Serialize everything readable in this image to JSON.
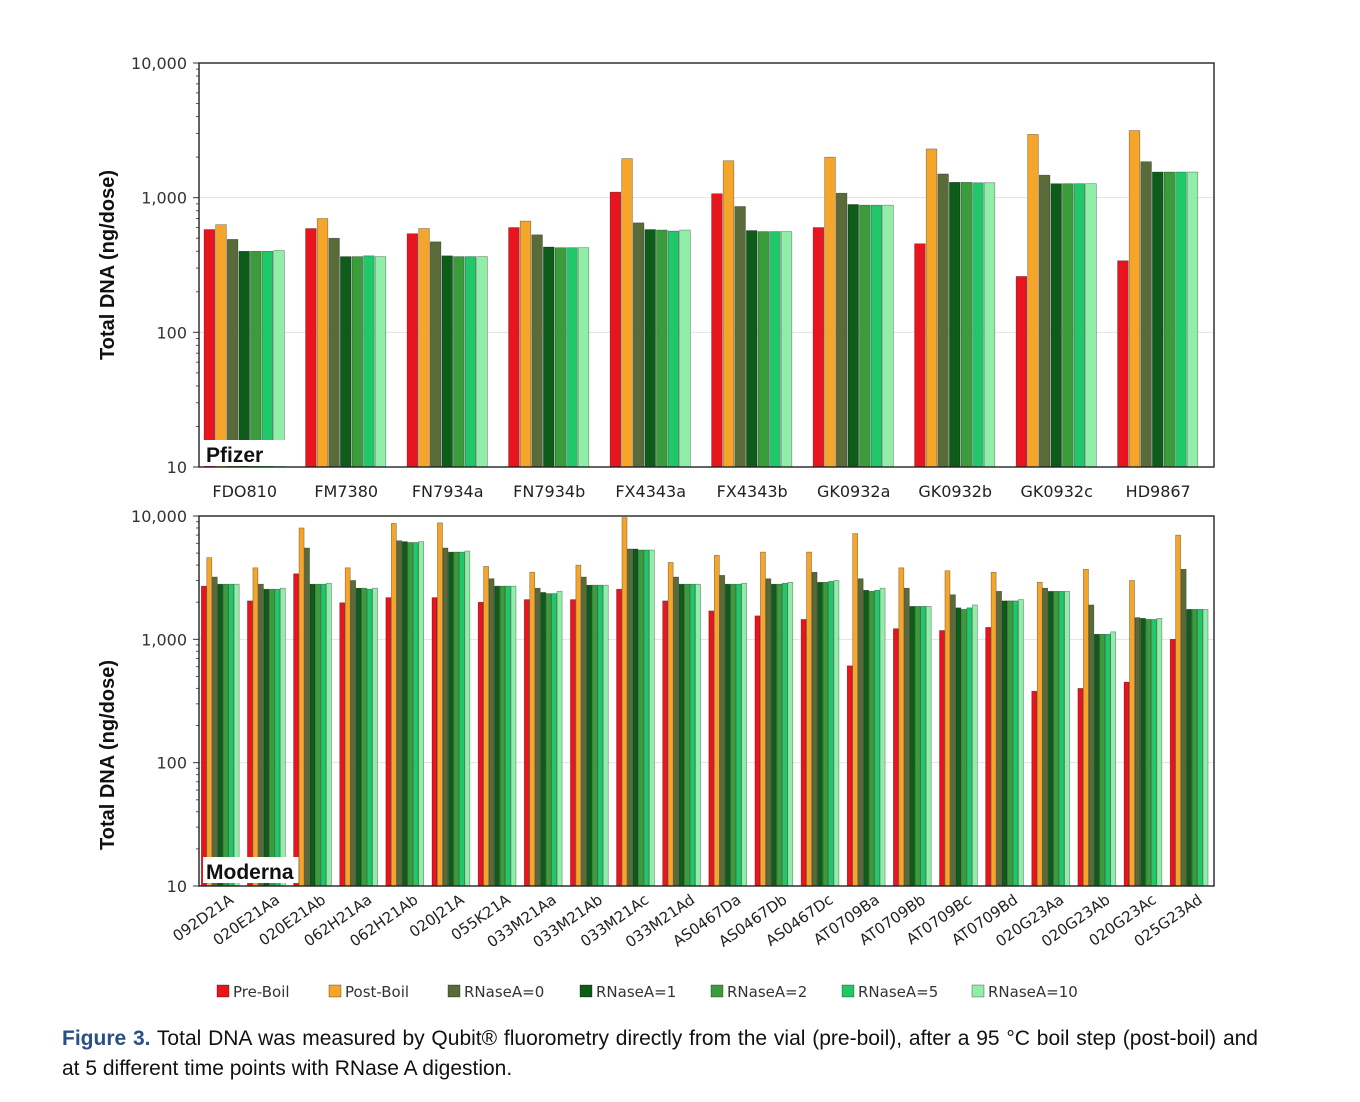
{
  "chart_data": [
    {
      "type": "bar",
      "brand_label": "Pfizer",
      "ylabel": "Total DNA (ng/dose)",
      "yscale": "log",
      "ylim": [
        10,
        10000
      ],
      "yticks": [
        10,
        100,
        1000,
        10000
      ],
      "ytick_labels": [
        "10",
        "100",
        "1,000",
        "10,000"
      ],
      "grid": true,
      "categories": [
        "FDO810",
        "FM7380",
        "FN7934a",
        "FN7934b",
        "FX4343a",
        "FX4343b",
        "GK0932a",
        "GK0932b",
        "GK0932c",
        "HD9867"
      ],
      "series": [
        {
          "name": "Pre-Boil",
          "values": [
            580,
            590,
            540,
            600,
            1100,
            1070,
            600,
            455,
            260,
            340
          ]
        },
        {
          "name": "Post-Boil",
          "values": [
            630,
            700,
            590,
            670,
            1950,
            1880,
            2000,
            2300,
            2950,
            3150
          ]
        },
        {
          "name": "RNaseA=0",
          "values": [
            490,
            500,
            470,
            530,
            650,
            860,
            1080,
            1500,
            1470,
            1850
          ]
        },
        {
          "name": "RNaseA=1",
          "values": [
            400,
            365,
            370,
            430,
            580,
            570,
            890,
            1300,
            1270,
            1550
          ]
        },
        {
          "name": "RNaseA=2",
          "values": [
            400,
            365,
            365,
            425,
            575,
            560,
            880,
            1300,
            1270,
            1550
          ]
        },
        {
          "name": "RNaseA=5",
          "values": [
            400,
            370,
            365,
            425,
            565,
            560,
            880,
            1290,
            1270,
            1550
          ]
        },
        {
          "name": "RNaseA=10",
          "values": [
            405,
            365,
            365,
            425,
            575,
            560,
            880,
            1290,
            1270,
            1550
          ]
        }
      ]
    },
    {
      "type": "bar",
      "brand_label": "Moderna",
      "ylabel": "Total DNA (ng/dose)",
      "yscale": "log",
      "ylim": [
        10,
        10000
      ],
      "yticks": [
        10,
        100,
        1000,
        10000
      ],
      "ytick_labels": [
        "10",
        "100",
        "1,000",
        "10,000"
      ],
      "grid": true,
      "categories": [
        "092D21A",
        "020E21Aa",
        "020E21Ab",
        "062H21Aa",
        "062H21Ab",
        "020J21A",
        "055K21A",
        "033M21Aa",
        "033M21Ab",
        "033M21Ac",
        "033M21Ad",
        "AS0467Da",
        "AS0467Db",
        "AS0467Dc",
        "AT0709Ba",
        "AT0709Bb",
        "AT0709Bc",
        "AT0709Bd",
        "020G23Aa",
        "020G23Ab",
        "020G23Ac",
        "025G23Ad"
      ],
      "series": [
        {
          "name": "Pre-Boil",
          "values": [
            2700,
            2050,
            3400,
            1980,
            2180,
            2180,
            2000,
            2100,
            2100,
            2550,
            2050,
            1700,
            1550,
            1450,
            610,
            1220,
            1180,
            1250,
            380,
            400,
            450,
            1000
          ]
        },
        {
          "name": "Post-Boil",
          "values": [
            4600,
            3800,
            8000,
            3800,
            8700,
            8800,
            3900,
            3500,
            4000,
            9700,
            4200,
            4800,
            5100,
            5100,
            7200,
            3800,
            3600,
            3500,
            2900,
            3700,
            3000,
            7000
          ]
        },
        {
          "name": "RNaseA=0",
          "values": [
            3200,
            2800,
            5500,
            3000,
            6300,
            5500,
            3100,
            2600,
            3200,
            5400,
            3200,
            3300,
            3100,
            3500,
            3100,
            2600,
            2300,
            2450,
            2600,
            1900,
            1500,
            3700
          ]
        },
        {
          "name": "RNaseA=1",
          "values": [
            2800,
            2550,
            2800,
            2600,
            6200,
            5100,
            2700,
            2400,
            2750,
            5400,
            2800,
            2800,
            2800,
            2900,
            2500,
            1850,
            1800,
            2050,
            2450,
            1100,
            1480,
            1750
          ]
        },
        {
          "name": "RNaseA=2",
          "values": [
            2800,
            2550,
            2800,
            2600,
            6100,
            5100,
            2700,
            2350,
            2750,
            5300,
            2800,
            2800,
            2800,
            2900,
            2450,
            1850,
            1750,
            2050,
            2450,
            1100,
            1450,
            1750
          ]
        },
        {
          "name": "RNaseA=5",
          "values": [
            2800,
            2550,
            2800,
            2550,
            6100,
            5100,
            2700,
            2350,
            2750,
            5300,
            2800,
            2800,
            2850,
            2950,
            2500,
            1850,
            1800,
            2050,
            2450,
            1100,
            1450,
            1750
          ]
        },
        {
          "name": "RNaseA=10",
          "values": [
            2800,
            2600,
            2850,
            2600,
            6200,
            5200,
            2700,
            2450,
            2750,
            5300,
            2800,
            2850,
            2900,
            3000,
            2600,
            1850,
            1900,
            2100,
            2450,
            1150,
            1480,
            1750
          ]
        }
      ]
    }
  ],
  "legend": [
    {
      "name": "Pre-Boil",
      "color": "#e8141e"
    },
    {
      "name": "Post-Boil",
      "color": "#f4a52a"
    },
    {
      "name": "RNaseA=0",
      "color": "#5a6b3a"
    },
    {
      "name": "RNaseA=1",
      "color": "#0e5c1a"
    },
    {
      "name": "RNaseA=2",
      "color": "#3a9c3a"
    },
    {
      "name": "RNaseA=5",
      "color": "#20c86a"
    },
    {
      "name": "RNaseA=10",
      "color": "#90eea8"
    }
  ],
  "caption": {
    "label": "Figure 3.",
    "text": " Total DNA was measured by Qubit® fluorometry directly from the vial (pre-boil), after a 95 °C boil step (post-boil) and at 5 different time points with RNase A digestion."
  }
}
